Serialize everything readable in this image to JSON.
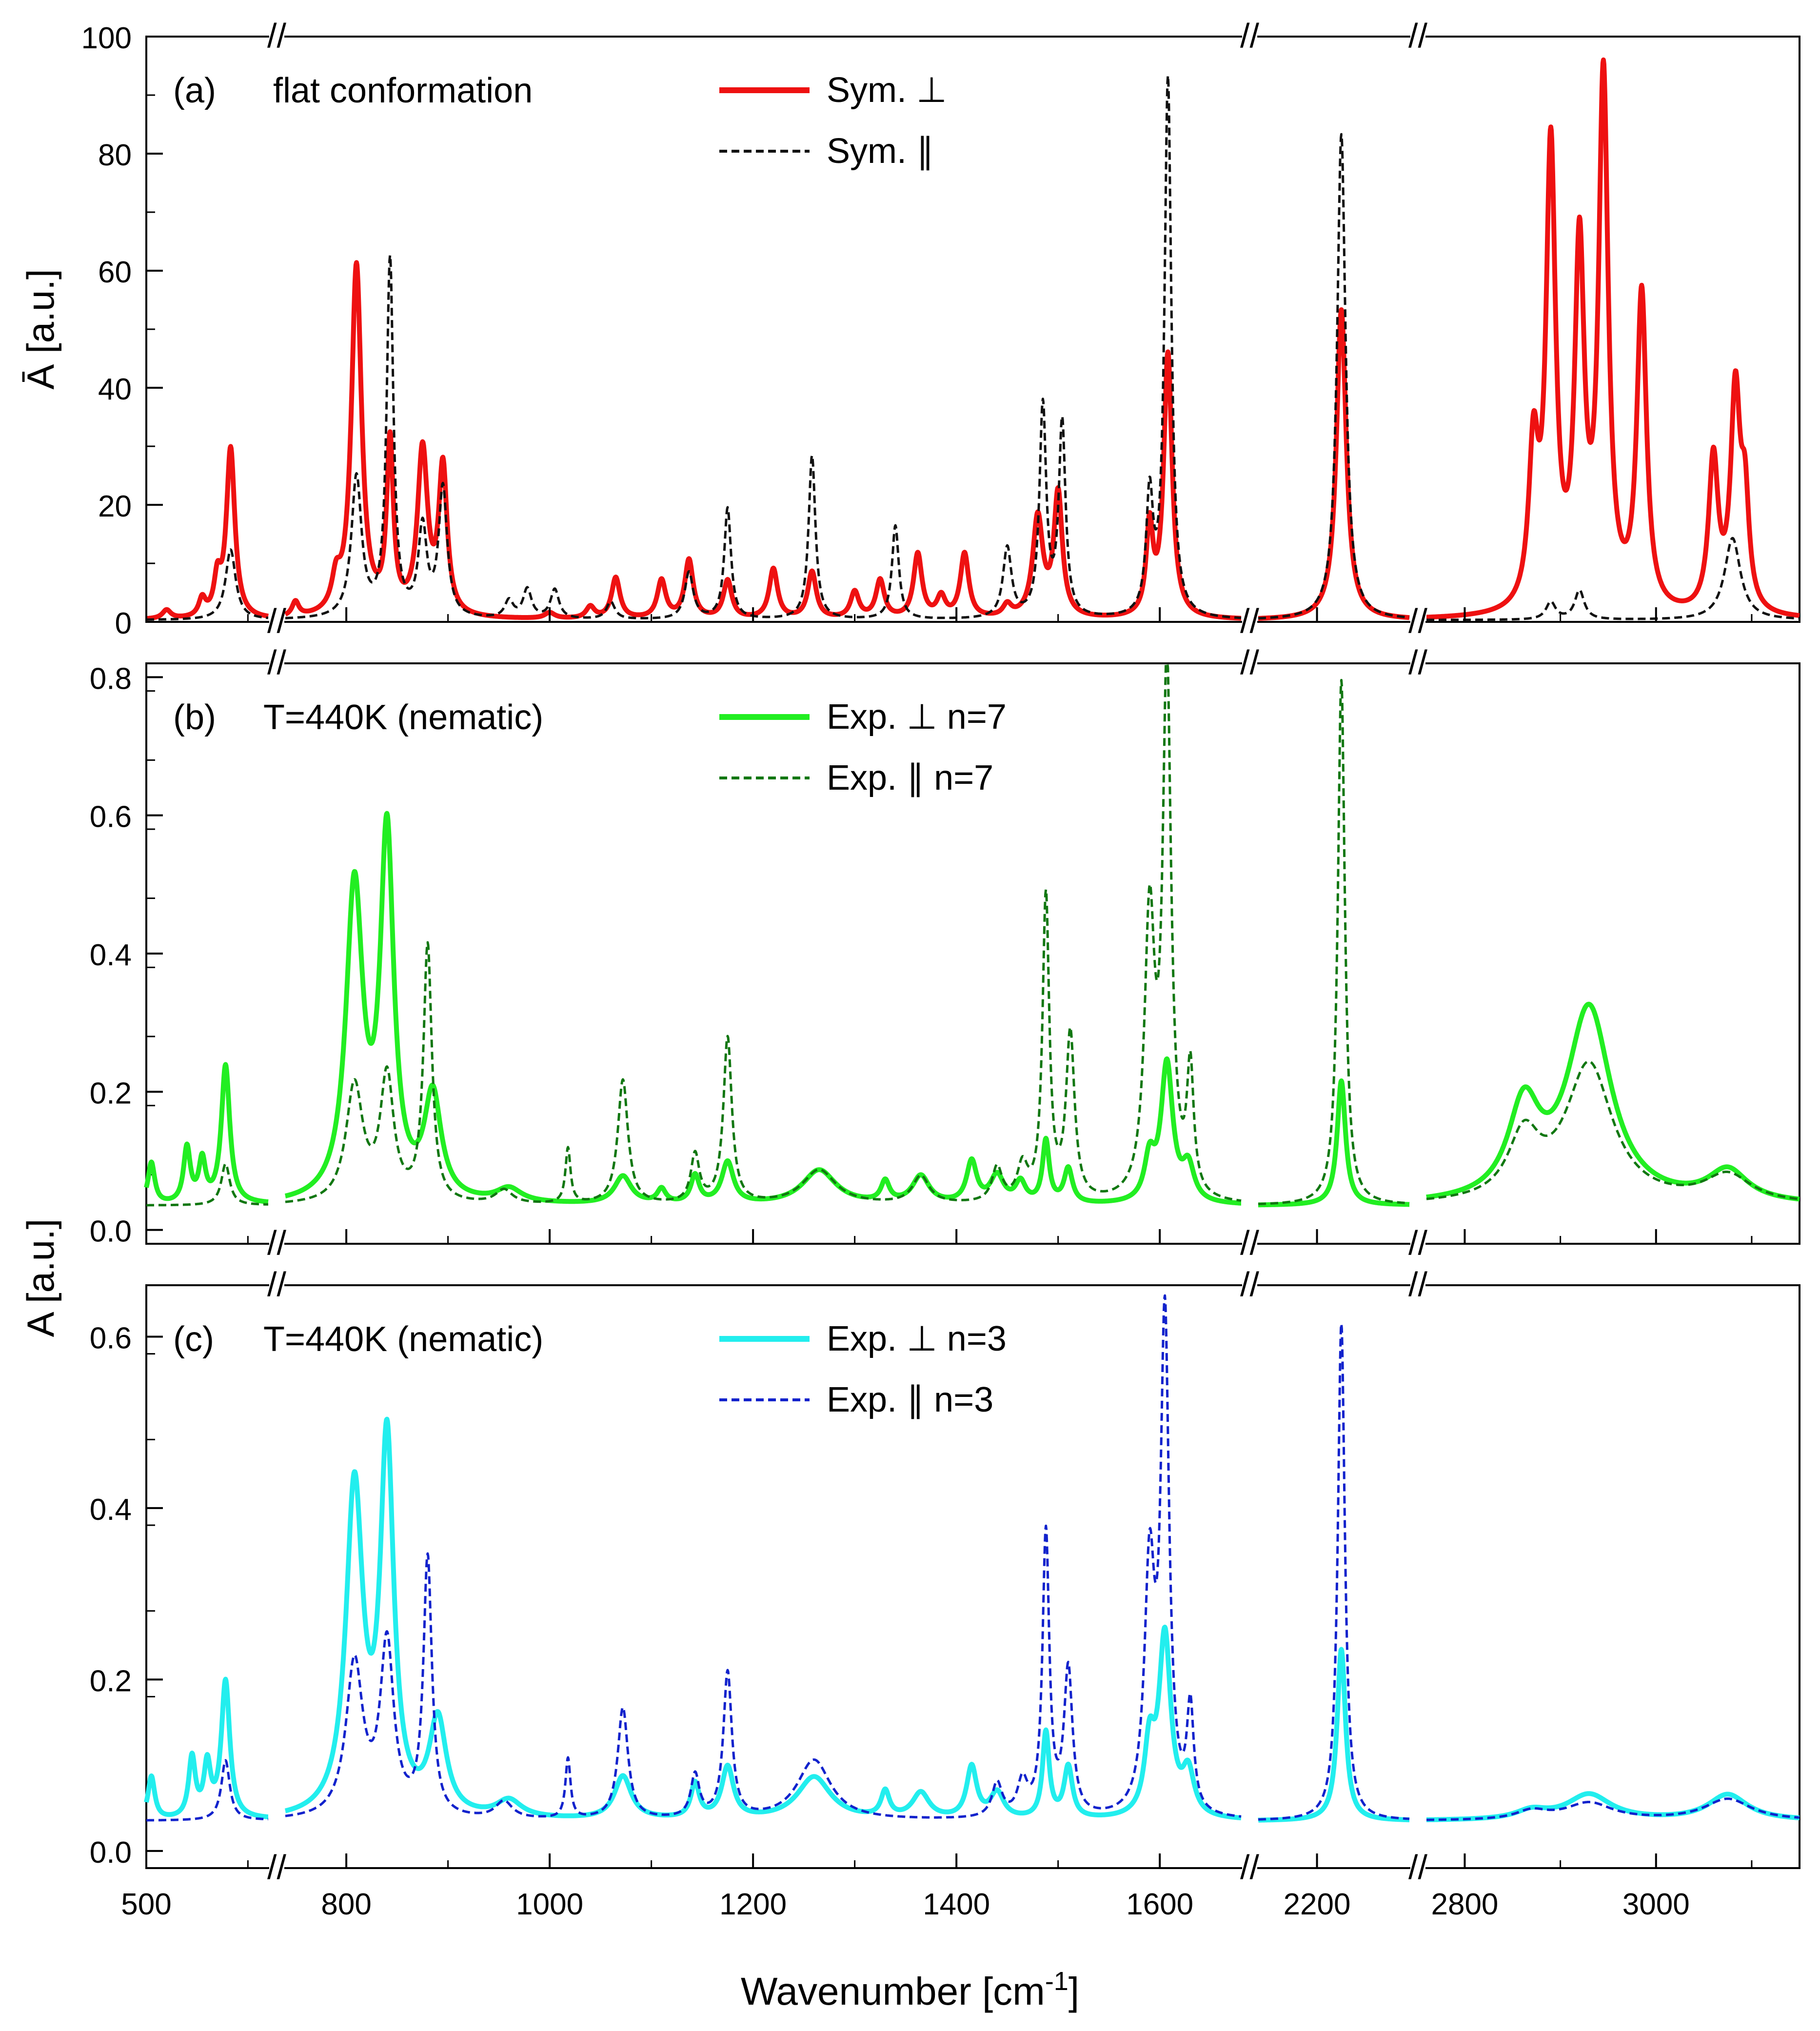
{
  "figure": {
    "xlabel": "Wavenumber [cm",
    "xlabel_sup": "-1",
    "xlabel_end": "]",
    "axis_break_marker": "//"
  },
  "chart_data": [
    {
      "type": "line",
      "panel_label": "(a)",
      "title": "flat conformation",
      "ylabel": "Ā [a.u.]",
      "ylim": [
        0,
        100
      ],
      "yticks": [
        0,
        20,
        40,
        60,
        80,
        100
      ],
      "ytick_labels": [
        "0",
        "20",
        "40",
        "60",
        "80",
        "100"
      ],
      "y_minor_step": 10,
      "baseline": 0.3,
      "series": [
        {
          "name": "Sym. ⊥",
          "color": "#ee1111",
          "style": "solid",
          "peaks": [
            [
              520,
              1.5,
              5
            ],
            [
              555,
              3,
              4
            ],
            [
              570,
              6,
              4
            ],
            [
              583,
              29,
              5
            ],
            [
              750,
              2.5,
              4
            ],
            [
              790,
              5,
              5
            ],
            [
              810,
              60,
              6
            ],
            [
              843,
              29,
              4
            ],
            [
              875,
              28,
              6
            ],
            [
              895,
              25,
              5
            ],
            [
              1000,
              1,
              6
            ],
            [
              1040,
              2,
              5
            ],
            [
              1065,
              7,
              5
            ],
            [
              1110,
              6.5,
              5
            ],
            [
              1137,
              10,
              5
            ],
            [
              1175,
              6.5,
              5
            ],
            [
              1220,
              8.5,
              5
            ],
            [
              1258,
              8,
              5
            ],
            [
              1300,
              4.5,
              5
            ],
            [
              1325,
              6.5,
              5
            ],
            [
              1362,
              11,
              5
            ],
            [
              1385,
              3.5,
              5
            ],
            [
              1408,
              11,
              5
            ],
            [
              1450,
              2,
              5
            ],
            [
              1480,
              17,
              6
            ],
            [
              1500,
              21,
              5
            ],
            [
              1590,
              15,
              4
            ],
            [
              1608,
              45,
              5
            ],
            [
              2229,
              53,
              7
            ],
            [
              2872,
              26,
              6
            ],
            [
              2890,
              78,
              6
            ],
            [
              2920,
              60,
              6
            ],
            [
              2945,
              90,
              6
            ],
            [
              2985,
              54,
              6
            ],
            [
              3060,
              26,
              6
            ],
            [
              3083,
              37,
              6
            ],
            [
              3093,
              17,
              5
            ]
          ]
        },
        {
          "name": "Sym. ∥",
          "color": "#111111",
          "style": "dashed",
          "peaks": [
            [
              583,
              12,
              6
            ],
            [
              810,
              24,
              6
            ],
            [
              843,
              61,
              4
            ],
            [
              875,
              15,
              5
            ],
            [
              895,
              22,
              5
            ],
            [
              960,
              3,
              5
            ],
            [
              978,
              5,
              5
            ],
            [
              1005,
              5,
              5
            ],
            [
              1060,
              3,
              5
            ],
            [
              1137,
              8,
              5
            ],
            [
              1175,
              19,
              4
            ],
            [
              1258,
              28,
              4
            ],
            [
              1340,
              16,
              4
            ],
            [
              1450,
              12,
              5
            ],
            [
              1485,
              36,
              4
            ],
            [
              1504,
              33,
              4
            ],
            [
              1590,
              20,
              4
            ],
            [
              1608,
              92,
              4
            ],
            [
              2229,
              83,
              6
            ],
            [
              2890,
              3,
              6
            ],
            [
              2920,
              5,
              6
            ],
            [
              3080,
              14,
              10
            ]
          ]
        }
      ]
    },
    {
      "type": "line",
      "panel_label": "(b)",
      "title": "T=440K (nematic)",
      "ylabel": "",
      "ylim": [
        -0.02,
        0.82
      ],
      "yticks": [
        0.0,
        0.2,
        0.4,
        0.6,
        0.8
      ],
      "ytick_labels": [
        "0.0",
        "0.2",
        "0.4",
        "0.6",
        "0.8"
      ],
      "y_minor_step": 0.1,
      "baseline": 0.035,
      "series": [
        {
          "name": "Exp. ⊥ n=7",
          "color": "#22ee22",
          "style": "solid",
          "peaks": [
            [
              505,
              0.06,
              4
            ],
            [
              540,
              0.08,
              4
            ],
            [
              555,
              0.06,
              4
            ],
            [
              578,
              0.2,
              5
            ],
            [
              808,
              0.45,
              10
            ],
            [
              840,
              0.52,
              8
            ],
            [
              885,
              0.15,
              10
            ],
            [
              960,
              0.02,
              15
            ],
            [
              1072,
              0.04,
              10
            ],
            [
              1110,
              0.02,
              5
            ],
            [
              1143,
              0.04,
              5
            ],
            [
              1175,
              0.06,
              7
            ],
            [
              1265,
              0.05,
              20
            ],
            [
              1330,
              0.03,
              5
            ],
            [
              1365,
              0.04,
              10
            ],
            [
              1415,
              0.06,
              6
            ],
            [
              1440,
              0.04,
              8
            ],
            [
              1463,
              0.03,
              6
            ],
            [
              1488,
              0.09,
              4
            ],
            [
              1510,
              0.05,
              5
            ],
            [
              1590,
              0.06,
              6
            ],
            [
              1607,
              0.2,
              7
            ],
            [
              1628,
              0.05,
              7
            ],
            [
              2229,
              0.18,
              6
            ],
            [
              2862,
              0.13,
              20
            ],
            [
              2930,
              0.28,
              28
            ],
            [
              3075,
              0.045,
              25
            ]
          ]
        },
        {
          "name": "Exp. ∥ n=7",
          "color": "#117711",
          "style": "dashed",
          "peaks": [
            [
              578,
              0.06,
              5
            ],
            [
              808,
              0.17,
              10
            ],
            [
              840,
              0.18,
              8
            ],
            [
              880,
              0.37,
              5
            ],
            [
              955,
              0.02,
              10
            ],
            [
              1018,
              0.08,
              3
            ],
            [
              1072,
              0.18,
              6
            ],
            [
              1143,
              0.07,
              5
            ],
            [
              1175,
              0.24,
              5
            ],
            [
              1265,
              0.05,
              20
            ],
            [
              1365,
              0.04,
              10
            ],
            [
              1440,
              0.05,
              6
            ],
            [
              1465,
              0.05,
              6
            ],
            [
              1488,
              0.44,
              4
            ],
            [
              1512,
              0.24,
              5
            ],
            [
              1590,
              0.4,
              6
            ],
            [
              1607,
              0.76,
              5
            ],
            [
              1630,
              0.18,
              4
            ],
            [
              2229,
              0.76,
              5
            ],
            [
              2862,
              0.09,
              20
            ],
            [
              2930,
              0.2,
              30
            ],
            [
              3075,
              0.04,
              30
            ]
          ]
        }
      ]
    },
    {
      "type": "line",
      "panel_label": "(c)",
      "title": "T=440K (nematic)",
      "ylabel": "A [a.u.]",
      "ylim": [
        -0.02,
        0.66
      ],
      "yticks": [
        0.0,
        0.2,
        0.4,
        0.6
      ],
      "ytick_labels": [
        "0.0",
        "0.2",
        "0.4",
        "0.6"
      ],
      "y_minor_step": 0.1,
      "baseline": 0.035,
      "series": [
        {
          "name": "Exp. ⊥ n=3",
          "color": "#22eeee",
          "style": "solid",
          "peaks": [
            [
              505,
              0.05,
              4
            ],
            [
              545,
              0.07,
              4
            ],
            [
              560,
              0.06,
              4
            ],
            [
              578,
              0.16,
              5
            ],
            [
              808,
              0.38,
              10
            ],
            [
              840,
              0.43,
              8
            ],
            [
              890,
              0.11,
              10
            ],
            [
              960,
              0.02,
              15
            ],
            [
              1072,
              0.05,
              10
            ],
            [
              1143,
              0.04,
              5
            ],
            [
              1175,
              0.06,
              7
            ],
            [
              1260,
              0.05,
              20
            ],
            [
              1330,
              0.03,
              5
            ],
            [
              1365,
              0.03,
              10
            ],
            [
              1415,
              0.06,
              6
            ],
            [
              1440,
              0.03,
              8
            ],
            [
              1488,
              0.1,
              4
            ],
            [
              1510,
              0.06,
              5
            ],
            [
              1590,
              0.08,
              6
            ],
            [
              1605,
              0.21,
              7
            ],
            [
              1628,
              0.05,
              7
            ],
            [
              2229,
              0.2,
              6
            ],
            [
              2870,
              0.01,
              20
            ],
            [
              2930,
              0.03,
              28
            ],
            [
              3075,
              0.03,
              25
            ]
          ]
        },
        {
          "name": "Exp. ∥ n=3",
          "color": "#1122cc",
          "style": "dashed",
          "peaks": [
            [
              578,
              0.07,
              5
            ],
            [
              808,
              0.18,
              10
            ],
            [
              840,
              0.2,
              8
            ],
            [
              880,
              0.3,
              5
            ],
            [
              955,
              0.02,
              10
            ],
            [
              1018,
              0.07,
              3
            ],
            [
              1072,
              0.13,
              6
            ],
            [
              1143,
              0.05,
              5
            ],
            [
              1175,
              0.17,
              5
            ],
            [
              1260,
              0.07,
              20
            ],
            [
              1440,
              0.04,
              6
            ],
            [
              1465,
              0.04,
              6
            ],
            [
              1488,
              0.33,
              4
            ],
            [
              1510,
              0.17,
              5
            ],
            [
              1590,
              0.28,
              6
            ],
            [
              1605,
              0.57,
              5
            ],
            [
              1630,
              0.12,
              4
            ],
            [
              2229,
              0.58,
              5
            ],
            [
              2870,
              0.01,
              20
            ],
            [
              2930,
              0.02,
              30
            ],
            [
              3075,
              0.025,
              30
            ]
          ]
        }
      ]
    }
  ],
  "x_segments": [
    {
      "range": [
        500,
        620
      ],
      "ticks": [
        500
      ],
      "minor": [
        600
      ]
    },
    {
      "range": [
        740,
        1680
      ],
      "ticks": [
        800,
        1000,
        1200,
        1400,
        1600
      ],
      "minor": [
        900,
        1100,
        1300,
        1500
      ]
    },
    {
      "range": [
        2130,
        2310
      ],
      "ticks": [
        2200
      ],
      "minor": []
    },
    {
      "range": [
        2760,
        3150
      ],
      "ticks": [
        2800,
        3000
      ],
      "minor": [
        2900,
        3100
      ]
    }
  ]
}
